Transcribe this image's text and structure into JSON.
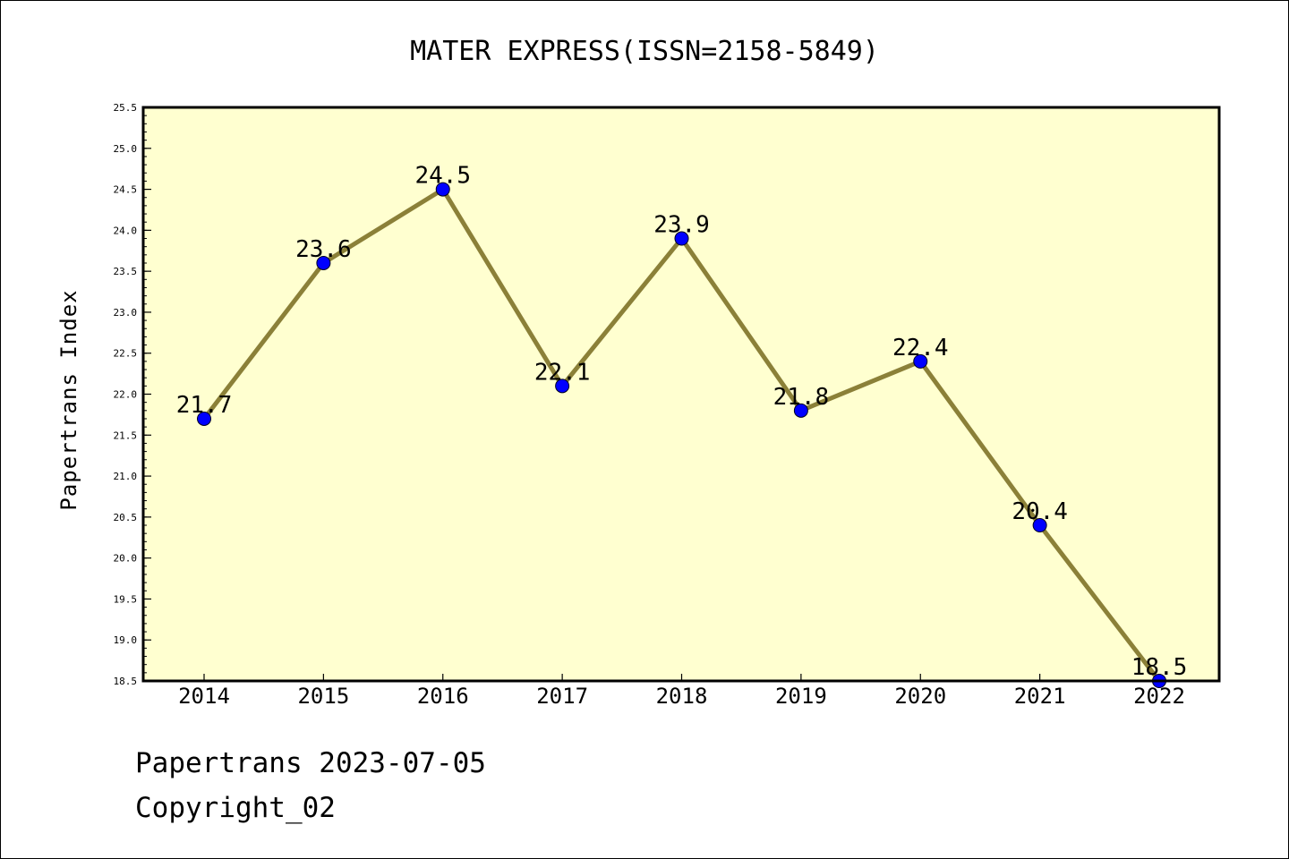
{
  "chart_data": {
    "type": "line",
    "title": "MATER EXPRESS(ISSN=2158-5849)",
    "xlabel": "",
    "ylabel": "Papertrans Index",
    "categories": [
      "2014",
      "2015",
      "2016",
      "2017",
      "2018",
      "2019",
      "2020",
      "2021",
      "2022"
    ],
    "values": [
      21.7,
      23.6,
      24.5,
      22.1,
      23.9,
      21.8,
      22.4,
      20.4,
      18.5
    ],
    "data_labels": [
      "21.7",
      "23.6",
      "24.5",
      "22.1",
      "23.9",
      "21.8",
      "22.4",
      "20.4",
      "18.5"
    ],
    "ylim": [
      18.5,
      25.5
    ],
    "yticks": [
      "18.5",
      "19.0",
      "19.5",
      "20.0",
      "20.5",
      "21.0",
      "21.5",
      "22.0",
      "22.5",
      "23.0",
      "23.5",
      "24.0",
      "24.5",
      "25.0",
      "25.5"
    ],
    "grid": false,
    "colors": {
      "plot_background": "#ffffd0",
      "line": "#8b8038",
      "marker": "#0000ff"
    }
  },
  "footer": {
    "line1": "Papertrans 2023-07-05",
    "line2": "Copyright_02"
  }
}
